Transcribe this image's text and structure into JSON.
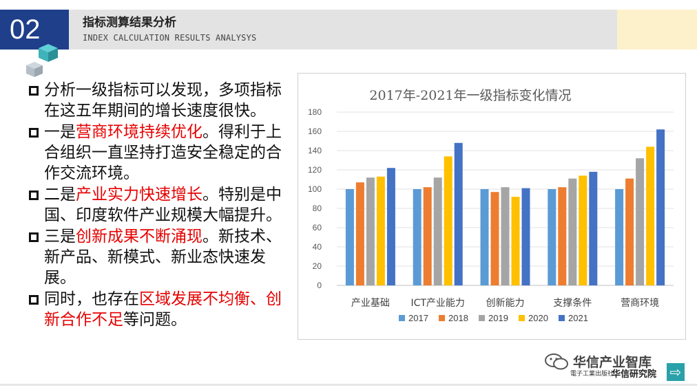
{
  "header": {
    "section_number": "02",
    "title": "指标测算结果分析",
    "subtitle": "INDEX CALCULATION RESULTS ANALYSYS"
  },
  "bullets": [
    {
      "parts": [
        {
          "text": "分析一级指标可以发现，多项指标在这五年期间的增长速度很快。",
          "highlight": false
        }
      ]
    },
    {
      "parts": [
        {
          "text": "一是",
          "highlight": false
        },
        {
          "text": "营商环境持续优化",
          "highlight": true
        },
        {
          "text": "。得利于上合组织一直坚持打造安全稳定的合作交流环境。",
          "highlight": false
        }
      ]
    },
    {
      "parts": [
        {
          "text": "二是",
          "highlight": false
        },
        {
          "text": "产业实力快速增长",
          "highlight": true
        },
        {
          "text": "。特别是中国、印度软件产业规模大幅提升。",
          "highlight": false
        }
      ]
    },
    {
      "parts": [
        {
          "text": "三是",
          "highlight": false
        },
        {
          "text": "创新成果不断涌现",
          "highlight": true
        },
        {
          "text": "。新技术、新产品、新模式、新业态快速发展。",
          "highlight": false
        }
      ]
    },
    {
      "parts": [
        {
          "text": "同时，也存在",
          "highlight": false
        },
        {
          "text": "区域发展不均衡、创新合作不足",
          "highlight": true
        },
        {
          "text": "等问题。",
          "highlight": false
        }
      ]
    }
  ],
  "colors": {
    "header_blue": "#1f3f8a",
    "highlight_red": "#e60000"
  },
  "chart_data": {
    "type": "bar",
    "title": "2017年-2021年一级指标变化情况",
    "categories": [
      "产业基础",
      "ICT产业能力",
      "创新能力",
      "支撑条件",
      "营商环境"
    ],
    "series": [
      {
        "name": "2017",
        "color": "#5b9bd5",
        "values": [
          100,
          100,
          100,
          100,
          100
        ]
      },
      {
        "name": "2018",
        "color": "#ed7d31",
        "values": [
          107,
          102,
          97,
          102,
          111
        ]
      },
      {
        "name": "2019",
        "color": "#a5a5a5",
        "values": [
          112,
          112,
          102,
          111,
          132
        ]
      },
      {
        "name": "2020",
        "color": "#ffc000",
        "values": [
          113,
          134,
          92,
          114,
          144
        ]
      },
      {
        "name": "2021",
        "color": "#4472c4",
        "values": [
          122,
          148,
          101,
          118,
          162
        ]
      }
    ],
    "ylim": [
      0,
      180
    ],
    "yticks": [
      0,
      20,
      40,
      60,
      80,
      100,
      120,
      140,
      160,
      180
    ],
    "grid": true,
    "legend_position": "bottom"
  },
  "watermark": {
    "brand": "华信产业智库",
    "publisher_small": "電子工業出版社",
    "institute": "华信研究院",
    "arrow_glyph": "⇨"
  }
}
